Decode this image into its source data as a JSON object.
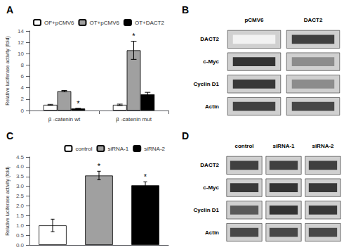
{
  "chart_data": [
    {
      "type": "bar",
      "title": "A",
      "ylabel": "Relative luciferase activity (fold)",
      "categories": [
        "β -catenin wt",
        "β -catenin mut"
      ],
      "series": [
        {
          "name": "OF+pCMV6",
          "color": "white",
          "values": [
            1.0,
            1.0
          ],
          "errors": [
            0.08,
            0.12
          ]
        },
        {
          "name": "OT+pCMV6",
          "color": "#a0a0a0",
          "values": [
            3.4,
            10.6
          ],
          "errors": [
            0.12,
            1.6
          ]
        },
        {
          "name": "OT+DACT2",
          "color": "black",
          "values": [
            0.35,
            2.85
          ],
          "errors": [
            0.04,
            0.35
          ]
        }
      ],
      "ylim": [
        0,
        14
      ],
      "yticks": [
        0,
        2,
        4,
        6,
        8,
        10,
        12,
        14
      ],
      "grid": false,
      "legend": "upper center",
      "annotations": [
        {
          "text": "*",
          "category": "β -catenin wt",
          "series": "OT+DACT2",
          "y": 0.55
        },
        {
          "text": "*",
          "category": "β -catenin mut",
          "series": "OT+pCMV6",
          "y": 12.4
        }
      ]
    },
    {
      "type": "heatmap",
      "title": "B",
      "categories": [
        "pCMV6",
        "DACT2"
      ],
      "row_labels": [
        "DACT2",
        "c-Myc",
        "Cyclin D1",
        "Actin"
      ],
      "values": [
        [
          0.95,
          0.25
        ],
        [
          0.2,
          0.55
        ],
        [
          0.22,
          0.55
        ],
        [
          0.25,
          0.28
        ]
      ]
    },
    {
      "type": "bar",
      "title": "C",
      "ylabel": "Relative luciferase activity (fold)",
      "categories": [
        "control",
        "siRNA-1",
        "siRNA-2"
      ],
      "values": [
        1.0,
        3.55,
        3.05
      ],
      "errors": [
        0.32,
        0.22,
        0.18
      ],
      "colors": [
        "white",
        "#a0a0a0",
        "black"
      ],
      "ylim": [
        0,
        4.5
      ],
      "yticks": [
        {
          "value": 0,
          "label": "0.0"
        },
        0.5,
        {
          "value": 1,
          "label": "1.0"
        },
        1.5,
        {
          "value": 2,
          "label": "2.0"
        },
        2.5,
        {
          "value": 3,
          "label": "3.0"
        },
        3.5,
        {
          "value": 4,
          "label": "4.0"
        },
        4.5
      ],
      "grid": false,
      "legend": "upper right",
      "tick_labels": "y",
      "annotations": [
        {
          "text": "*",
          "category": "siRNA-1",
          "y": 3.82
        },
        {
          "text": "*",
          "category": "siRNA-2",
          "y": 3.28
        }
      ]
    },
    {
      "type": "heatmap",
      "title": "D",
      "categories": [
        "control",
        "siRNA-1",
        "siRNA-2"
      ],
      "row_labels": [
        "DACT2",
        "c-Myc",
        "Cyclin D1",
        "Actin"
      ],
      "values": [
        [
          0.25,
          0.25,
          0.25
        ],
        [
          0.22,
          0.2,
          0.22
        ],
        [
          0.35,
          0.2,
          0.22
        ],
        [
          0.28,
          0.28,
          0.28
        ]
      ]
    }
  ]
}
